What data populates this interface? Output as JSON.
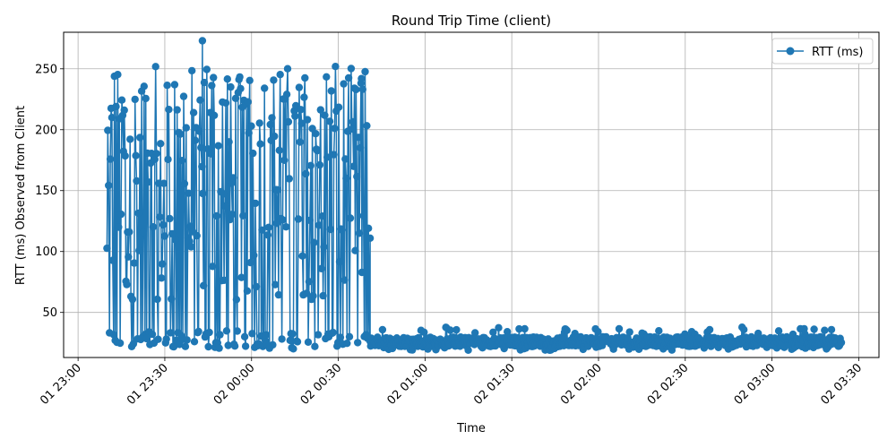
{
  "chart_data": {
    "type": "line",
    "title": "Round Trip Time (client)",
    "xlabel": "Time",
    "ylabel": "RTT (ms) Observed from Client",
    "x_range": [
      "01 23:10",
      "02 03:24"
    ],
    "xlim": [
      "01 22:55",
      "02 03:37"
    ],
    "x_ticks": [
      "01 23:00",
      "01 23:30",
      "02 00:00",
      "02 00:30",
      "02 01:00",
      "02 01:30",
      "02 02:00",
      "02 02:30",
      "02 03:00",
      "02 03:30"
    ],
    "ylim": [
      13,
      280
    ],
    "y_ticks": [
      50,
      100,
      150,
      200,
      250
    ],
    "grid": true,
    "legend_position": "top-right",
    "marker": "circle",
    "series": [
      {
        "name": "RTT (ms)",
        "color": "#1f77b4",
        "segments": [
          {
            "from": "01 23:10",
            "to": "02 00:41",
            "points": 320,
            "low": [
              20,
              35
            ],
            "high": [
              200,
              252
            ],
            "max_point": {
              "time": "01 23:43",
              "value": 273
            }
          },
          {
            "from": "02 00:41",
            "to": "02 03:24",
            "points": 760,
            "range": [
              19,
              38
            ],
            "mean": 26,
            "spike_point": {
              "time": "02 00:38",
              "value": 242
            }
          }
        ]
      }
    ]
  }
}
